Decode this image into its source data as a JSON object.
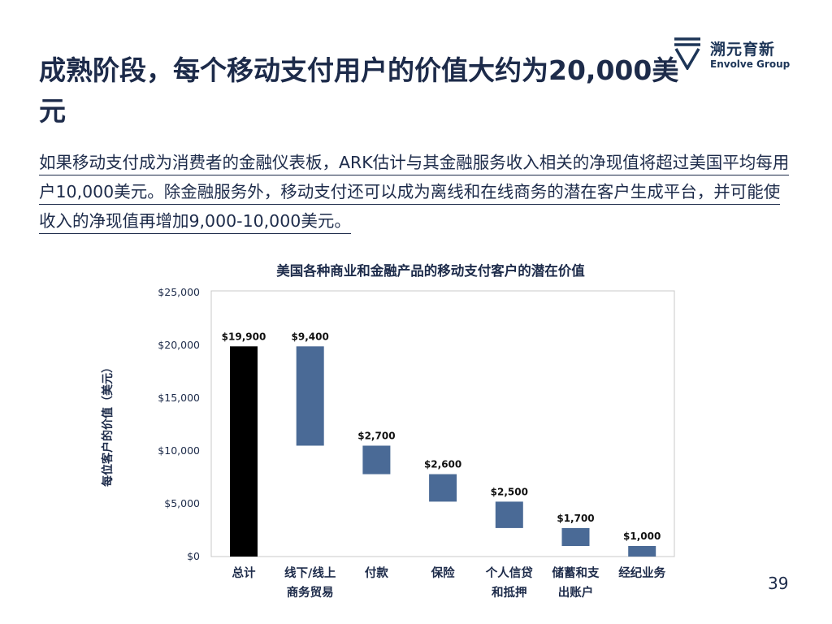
{
  "brand": {
    "name_cn": "溯元育新",
    "name_en": "Envolve Group"
  },
  "title": "成熟阶段，每个移动支付用户的价值大约为20,000美元",
  "intro": "如果移动支付成为消费者的金融仪表板，ARK估计与其金融服务收入相关的净现值将超过美国平均每用户10,000美元。除金融服务外，移动支付还可以成为离线和在线商务的潜在客户生成平台，并可能使收入的净现值再增加9,000-10,000美元。",
  "page_number": "39",
  "colors": {
    "total": "#000000",
    "component": "#4a6a96",
    "text": "#1d2b4a"
  },
  "chart_data": {
    "type": "bar",
    "subtype": "waterfall",
    "title": "美国各种商业和金融产品的移动支付客户的潜在价值",
    "ylabel": "每位客户的价值（美元）",
    "ylim": [
      0,
      25000
    ],
    "yticks": [
      0,
      5000,
      10000,
      15000,
      20000,
      25000
    ],
    "ytick_labels": [
      "$0",
      "$5,000",
      "$10,000",
      "$15,000",
      "$20,000",
      "$25,000"
    ],
    "grid": false,
    "categories": [
      "总计",
      "线下/线上\n商务贸易",
      "付款",
      "保险",
      "个人信贷\n和抵押",
      "储蓄和支\n出账户",
      "经纪业务"
    ],
    "values": [
      19900,
      9400,
      2700,
      2600,
      2500,
      1700,
      1000
    ],
    "bar_ranges": [
      [
        0,
        19900
      ],
      [
        10500,
        19900
      ],
      [
        7800,
        10500
      ],
      [
        5200,
        7800
      ],
      [
        2700,
        5200
      ],
      [
        1000,
        2700
      ],
      [
        0,
        1000
      ]
    ],
    "value_labels": [
      "$19,900",
      "$9,400",
      "$2,700",
      "$2,600",
      "$2,500",
      "$1,700",
      "$1,000"
    ]
  }
}
